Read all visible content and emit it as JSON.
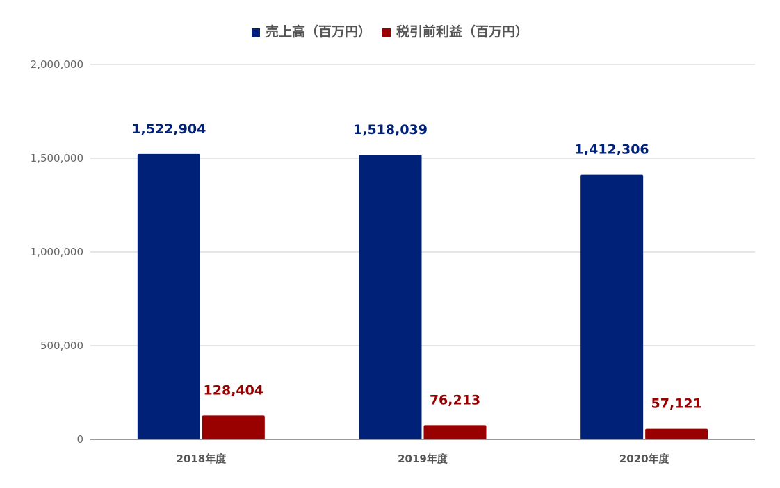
{
  "chart_data": {
    "type": "bar",
    "categories": [
      "2018年度",
      "2019年度",
      "2020年度"
    ],
    "series": [
      {
        "name": "売上高（百万円）",
        "color": "#002178",
        "values": [
          1522904,
          1518039,
          1412306
        ]
      },
      {
        "name": "税引前利益（百万円）",
        "color": "#990000",
        "values": [
          128404,
          76213,
          57121
        ]
      }
    ],
    "data_labels": [
      [
        "1,522,904",
        "1,518,039",
        "1,412,306"
      ],
      [
        "128,404",
        "76,213",
        "57,121"
      ]
    ],
    "y_ticks": [
      0,
      500000,
      1000000,
      1500000,
      2000000
    ],
    "y_tick_labels": [
      "0",
      "500,000",
      "1,000,000",
      "1,500,000",
      "2,000,000"
    ],
    "ylim": [
      0,
      2000000
    ],
    "grid": true,
    "legend_position": "top-center",
    "title": "",
    "xlabel": "",
    "ylabel": ""
  }
}
